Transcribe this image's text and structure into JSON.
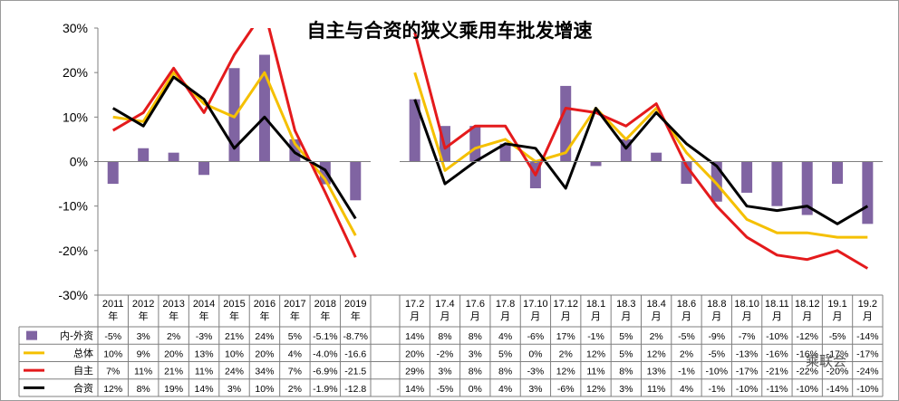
{
  "watermark": "乘联会",
  "chart_data": {
    "type": "bar+line",
    "title": "自主与合资的狭义乘用车批发增速",
    "y_axis": {
      "min": -30,
      "max": 30,
      "step": 10,
      "unit": "%",
      "ticks": [
        "30%",
        "20%",
        "10%",
        "0%",
        "-10%",
        "-20%",
        "-30%"
      ]
    },
    "gridlines": false,
    "groups": [
      {
        "categories": [
          [
            "2011",
            "年"
          ],
          [
            "2012",
            "年"
          ],
          [
            "2013",
            "年"
          ],
          [
            "2014",
            "年"
          ],
          [
            "2015",
            "年"
          ],
          [
            "2016",
            "年"
          ],
          [
            "2017",
            "年"
          ],
          [
            "2018",
            "年"
          ],
          [
            "2019",
            "年"
          ]
        ],
        "series_values": {
          "neiwai": [
            -5,
            3,
            2,
            -3,
            21,
            24,
            5,
            -5.1,
            -8.7
          ],
          "zongti": [
            10,
            9,
            20,
            13,
            10,
            20,
            4,
            -4.0,
            -16.6
          ],
          "zizhu": [
            7,
            11,
            21,
            11,
            24,
            34,
            7,
            -6.9,
            -21.5
          ],
          "hezi": [
            12,
            8,
            19,
            14,
            3,
            10,
            2,
            -1.9,
            -12.8
          ]
        },
        "labels": {
          "neiwai": [
            "-5%",
            "3%",
            "2%",
            "-3%",
            "21%",
            "24%",
            "5%",
            "-5.1%",
            "-8.7%"
          ],
          "zongti": [
            "10%",
            "9%",
            "20%",
            "13%",
            "10%",
            "20%",
            "4%",
            "-4.0%",
            "-16.6"
          ],
          "zizhu": [
            "7%",
            "11%",
            "21%",
            "11%",
            "24%",
            "34%",
            "7%",
            "-6.9%",
            "-21.5"
          ],
          "hezi": [
            "12%",
            "8%",
            "19%",
            "14%",
            "3%",
            "10%",
            "2%",
            "-1.9%",
            "-12.8"
          ]
        }
      },
      {
        "categories": [
          [
            "17.2",
            "月"
          ],
          [
            "17.4",
            "月"
          ],
          [
            "17.6",
            "月"
          ],
          [
            "17.8",
            "月"
          ],
          [
            "17.10",
            "月"
          ],
          [
            "17.12",
            "月"
          ],
          [
            "18.1",
            "月"
          ],
          [
            "18.3",
            "月"
          ],
          [
            "18.4",
            "月"
          ],
          [
            "18.6",
            "月"
          ],
          [
            "18.8",
            "月"
          ],
          [
            "18.10",
            "月"
          ],
          [
            "18.11",
            "月"
          ],
          [
            "18.12",
            "月"
          ],
          [
            "19.1",
            "月"
          ],
          [
            "19.2",
            "月"
          ]
        ],
        "series_values": {
          "neiwai": [
            14,
            8,
            8,
            4,
            -6,
            17,
            -1,
            5,
            2,
            -5,
            -9,
            -7,
            -10,
            -12,
            -5,
            -14
          ],
          "zongti": [
            20,
            -2,
            3,
            5,
            0,
            2,
            12,
            5,
            12,
            2,
            -5,
            -13,
            -16,
            -16,
            -17,
            -17
          ],
          "zizhu": [
            29,
            3,
            8,
            8,
            -3,
            12,
            11,
            8,
            13,
            -1,
            -10,
            -17,
            -21,
            -22,
            -20,
            -24
          ],
          "hezi": [
            14,
            -5,
            0,
            4,
            3,
            -6,
            12,
            3,
            11,
            4,
            -1,
            -10,
            -11,
            -10,
            -14,
            -10
          ]
        },
        "labels": {
          "neiwai": [
            "14%",
            "8%",
            "8%",
            "4%",
            "-6%",
            "17%",
            "-1%",
            "5%",
            "2%",
            "-5%",
            "-9%",
            "-7%",
            "-10%",
            "-12%",
            "-5%",
            "-14%"
          ],
          "zongti": [
            "20%",
            "-2%",
            "3%",
            "5%",
            "0%",
            "2%",
            "12%",
            "5%",
            "12%",
            "2%",
            "-5%",
            "-13%",
            "-16%",
            "-16%",
            "-17%",
            "-17%"
          ],
          "zizhu": [
            "29%",
            "3%",
            "8%",
            "8%",
            "-3%",
            "12%",
            "11%",
            "8%",
            "13%",
            "-1%",
            "-10%",
            "-17%",
            "-21%",
            "-22%",
            "-20%",
            "-24%"
          ],
          "hezi": [
            "14%",
            "-5%",
            "0%",
            "4%",
            "3%",
            "-6%",
            "12%",
            "3%",
            "11%",
            "4%",
            "-1%",
            "-10%",
            "-11%",
            "-10%",
            "-14%",
            "-10%"
          ]
        }
      }
    ],
    "series": [
      {
        "key": "neiwai",
        "name": "内-外资",
        "kind": "bar",
        "color": "#8064A2"
      },
      {
        "key": "zongti",
        "name": "总体",
        "kind": "line",
        "color": "#F5C000"
      },
      {
        "key": "zizhu",
        "name": "自主",
        "kind": "line",
        "color": "#E41A1C"
      },
      {
        "key": "hezi",
        "name": "合资",
        "kind": "line",
        "color": "#000000"
      }
    ]
  }
}
